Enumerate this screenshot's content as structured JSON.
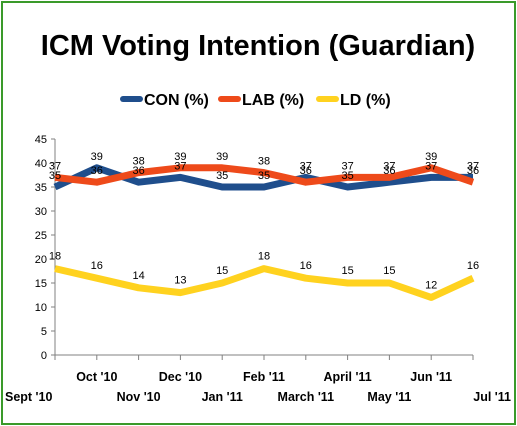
{
  "chart_data": {
    "type": "line",
    "title": "ICM Voting Intention (Guardian)",
    "categories": [
      "Sept '10",
      "Oct '10",
      "Nov '10",
      "Dec '10",
      "Jan '11",
      "Feb '11",
      "March '11",
      "April '11",
      "May '11",
      "Jun '11",
      "Jul '11"
    ],
    "series": [
      {
        "name": "CON (%)",
        "color": "#1f4e8c",
        "values": [
          35,
          39,
          36,
          37,
          35,
          35,
          37,
          35,
          36,
          37,
          37
        ]
      },
      {
        "name": "LAB (%)",
        "color": "#ee4a1a",
        "values": [
          37,
          36,
          38,
          39,
          39,
          38,
          36,
          37,
          37,
          39,
          36
        ]
      },
      {
        "name": "LD (%)",
        "color": "#ffd21f",
        "values": [
          18,
          16,
          14,
          13,
          15,
          18,
          16,
          15,
          15,
          12,
          16
        ]
      }
    ],
    "ylim": [
      0,
      45
    ],
    "yticks": [
      0,
      5,
      10,
      15,
      20,
      25,
      30,
      35,
      40,
      45
    ],
    "grid": false,
    "legend_position": "top"
  }
}
